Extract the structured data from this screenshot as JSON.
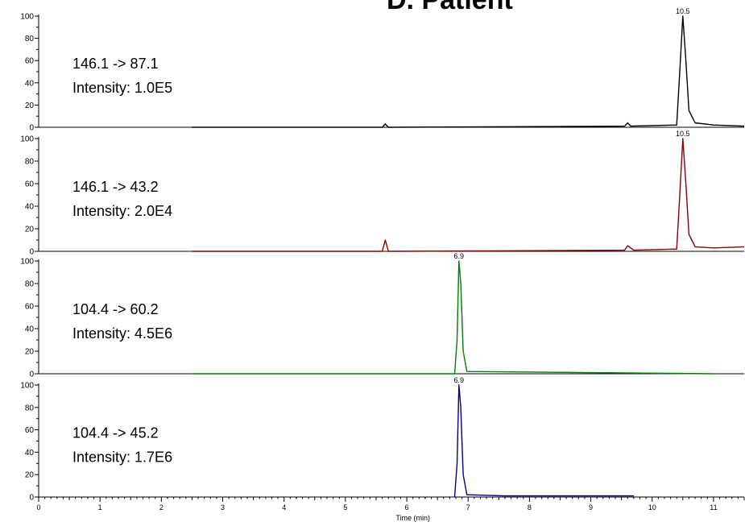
{
  "title": "D. Patient",
  "x_axis": {
    "label": "Time (min)",
    "range": [
      0,
      11.5
    ],
    "ticks": [
      "0",
      "1",
      "2",
      "3",
      "4",
      "5",
      "6",
      "7",
      "8",
      "9",
      "10",
      "11"
    ]
  },
  "y_ticks": [
    "0",
    "20",
    "40",
    "60",
    "80",
    "100"
  ],
  "chart_data": [
    {
      "type": "line",
      "transition": "146.1 -> 87.1",
      "intensity": "Intensity: 1.0E5",
      "color": "#000000",
      "ylim": [
        0,
        100
      ],
      "peak_label": "10.5",
      "x": [
        2.5,
        5.6,
        5.65,
        5.7,
        9.55,
        9.6,
        9.65,
        10.4,
        10.45,
        10.5,
        10.55,
        10.6,
        10.7,
        11.0,
        11.5
      ],
      "y": [
        0,
        0,
        3,
        0,
        1,
        4,
        1,
        2,
        50,
        100,
        60,
        15,
        4,
        2,
        1
      ]
    },
    {
      "type": "line",
      "transition": "146.1 -> 43.2",
      "intensity": "Intensity: 2.0E4",
      "color": "#8b0000",
      "ylim": [
        0,
        100
      ],
      "peak_label": "10.5",
      "x": [
        2.5,
        5.6,
        5.65,
        5.7,
        9.55,
        9.6,
        9.7,
        10.4,
        10.45,
        10.5,
        10.55,
        10.6,
        10.7,
        11.0,
        11.5
      ],
      "y": [
        0,
        0,
        10,
        0,
        1,
        5,
        1,
        2,
        50,
        100,
        60,
        15,
        4,
        3,
        4
      ]
    },
    {
      "type": "line",
      "transition": "104.4 -> 60.2",
      "intensity": "Intensity: 4.5E6",
      "color": "#008000",
      "ylim": [
        0,
        100
      ],
      "peak_label": "6.9",
      "x": [
        2.5,
        6.78,
        6.82,
        6.85,
        6.88,
        6.92,
        6.98,
        11.0
      ],
      "y": [
        0,
        0,
        30,
        100,
        80,
        20,
        2,
        0
      ]
    },
    {
      "type": "line",
      "transition": "104.4 -> 45.2",
      "intensity": "Intensity: 1.7E6",
      "color": "#00008b",
      "ylim": [
        0,
        100
      ],
      "peak_label": "6.9",
      "x": [
        6.78,
        6.82,
        6.85,
        6.88,
        6.92,
        6.98,
        7.6,
        9.1,
        9.7
      ],
      "y": [
        0,
        30,
        100,
        80,
        20,
        2,
        1,
        1,
        1
      ]
    }
  ]
}
